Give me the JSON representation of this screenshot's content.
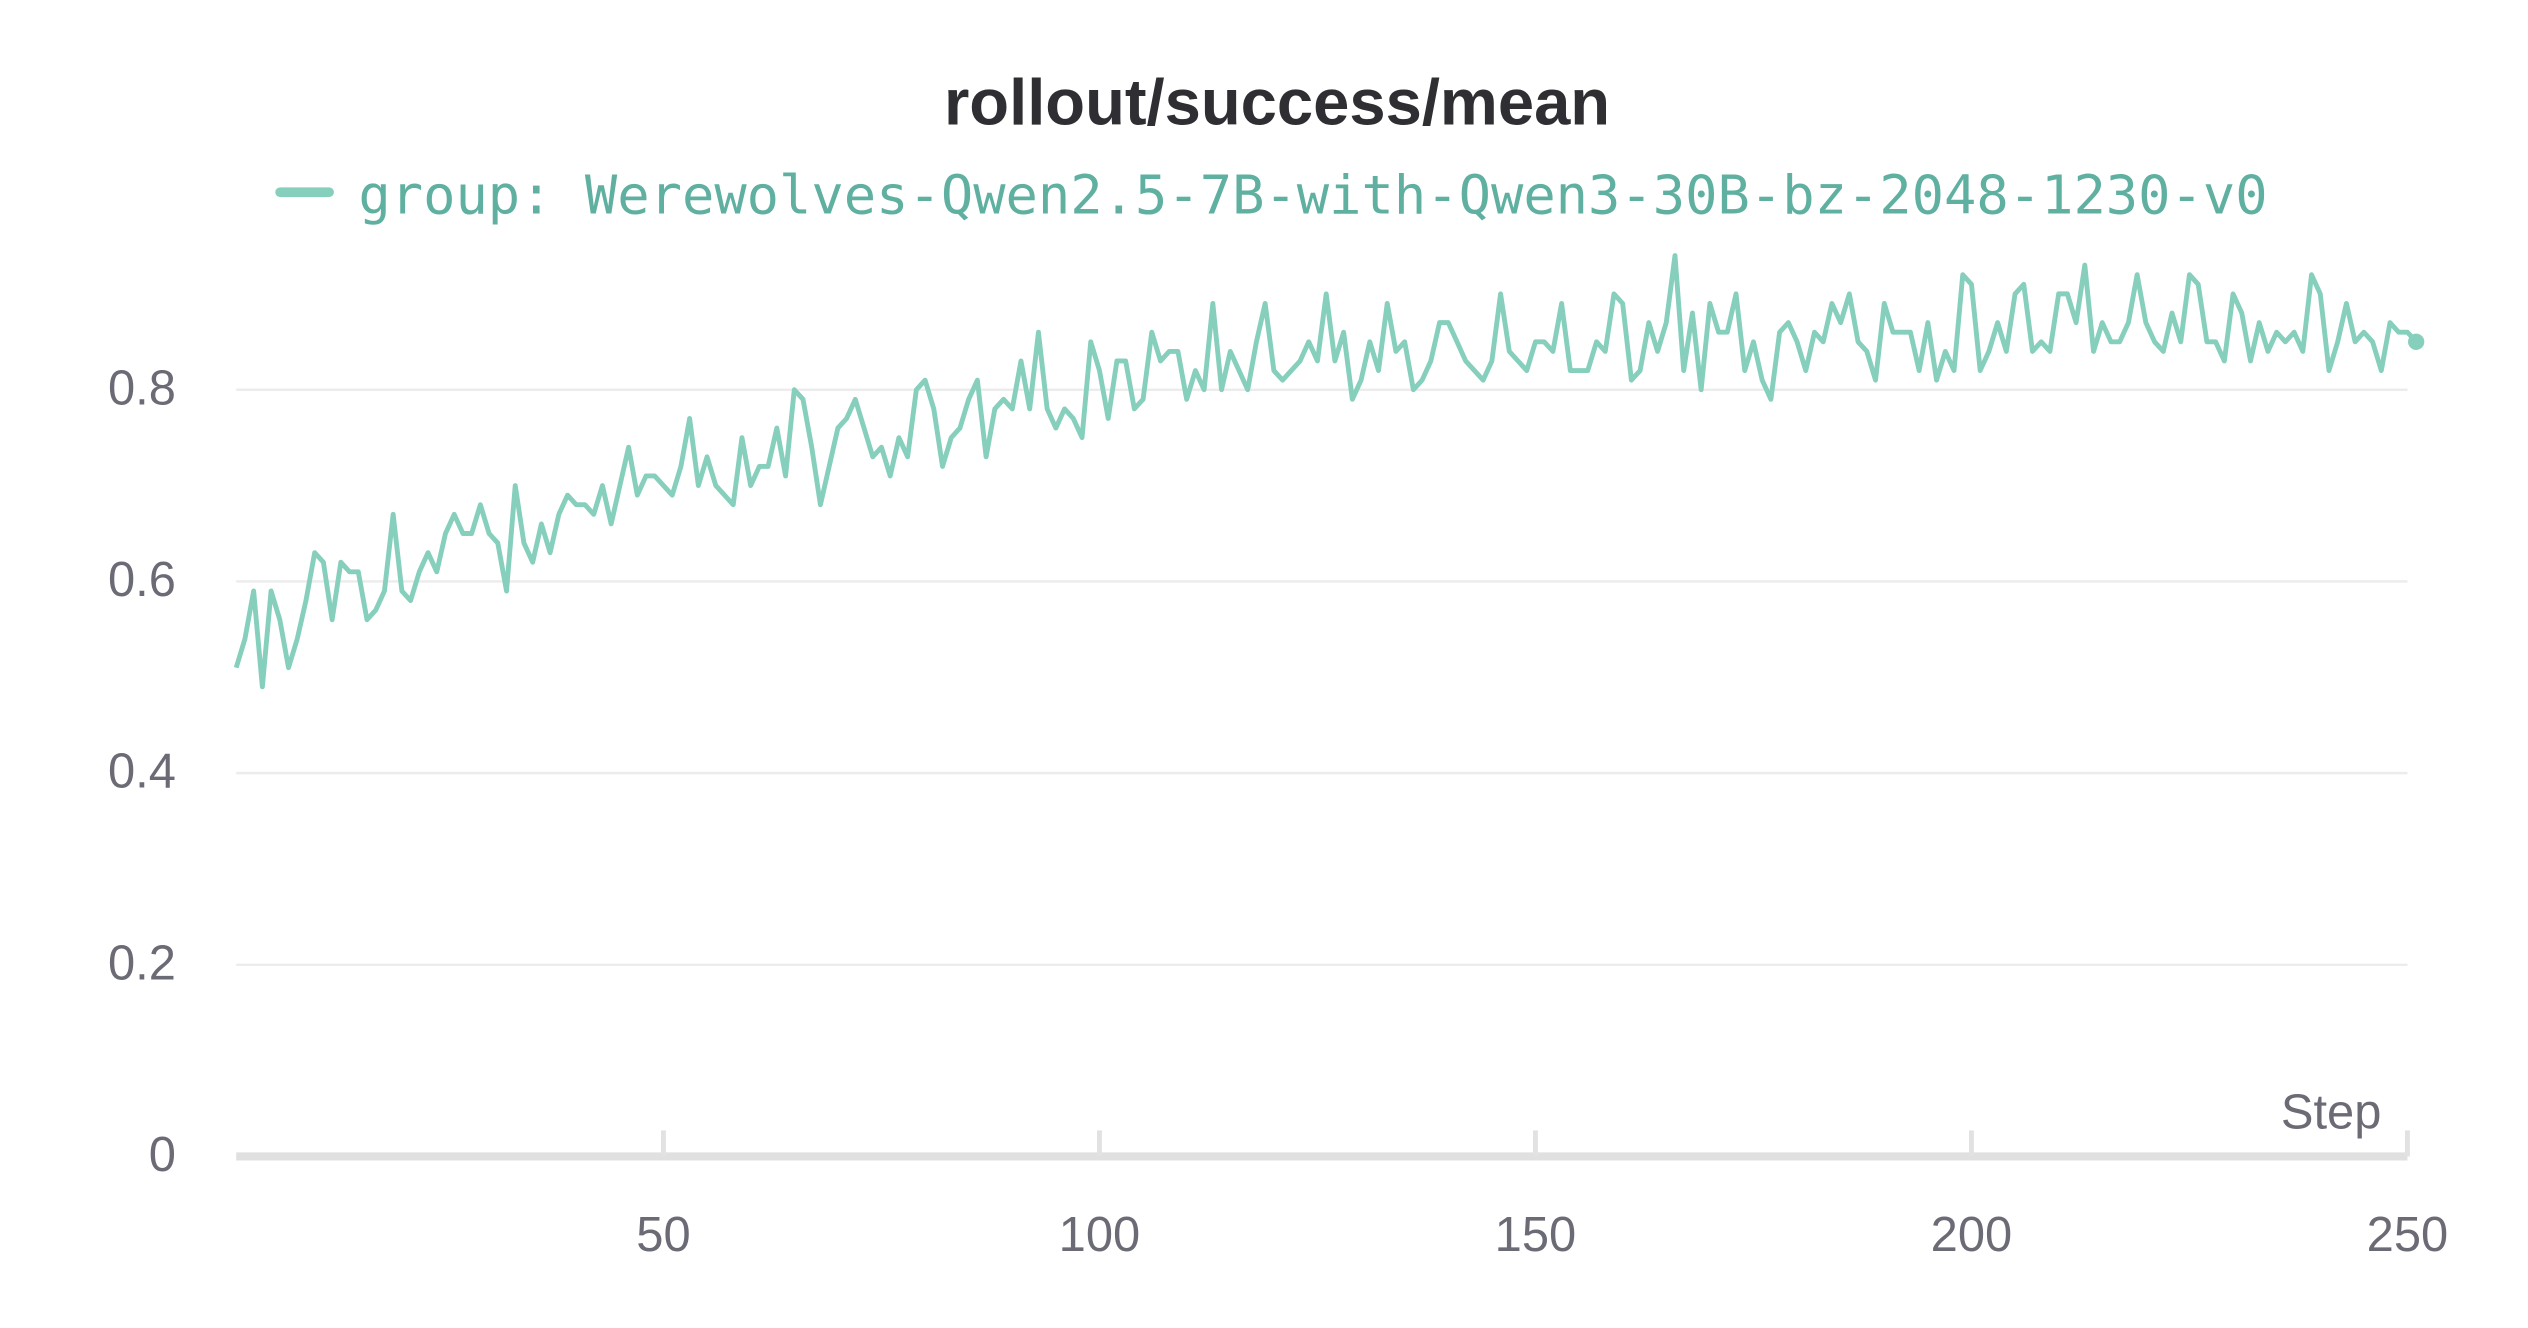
{
  "chart_data": {
    "type": "line",
    "title": "rollout/success/mean",
    "x_label": "Step",
    "x": [
      1,
      2,
      3,
      4,
      5,
      6,
      7,
      8,
      9,
      10,
      11,
      12,
      13,
      14,
      15,
      16,
      17,
      18,
      19,
      20,
      21,
      22,
      23,
      24,
      25,
      26,
      27,
      28,
      29,
      30,
      31,
      32,
      33,
      34,
      35,
      36,
      37,
      38,
      39,
      40,
      41,
      42,
      43,
      44,
      45,
      46,
      47,
      48,
      49,
      50,
      51,
      52,
      53,
      54,
      55,
      56,
      57,
      58,
      59,
      60,
      61,
      62,
      63,
      64,
      65,
      66,
      67,
      68,
      69,
      70,
      71,
      72,
      73,
      74,
      75,
      76,
      77,
      78,
      79,
      80,
      81,
      82,
      83,
      84,
      85,
      86,
      87,
      88,
      89,
      90,
      91,
      92,
      93,
      94,
      95,
      96,
      97,
      98,
      99,
      100,
      101,
      102,
      103,
      104,
      105,
      106,
      107,
      108,
      109,
      110,
      111,
      112,
      113,
      114,
      115,
      116,
      117,
      118,
      119,
      120,
      121,
      122,
      123,
      124,
      125,
      126,
      127,
      128,
      129,
      130,
      131,
      132,
      133,
      134,
      135,
      136,
      137,
      138,
      139,
      140,
      141,
      142,
      143,
      144,
      145,
      146,
      147,
      148,
      149,
      150,
      151,
      152,
      153,
      154,
      155,
      156,
      157,
      158,
      159,
      160,
      161,
      162,
      163,
      164,
      165,
      166,
      167,
      168,
      169,
      170,
      171,
      172,
      173,
      174,
      175,
      176,
      177,
      178,
      179,
      180,
      181,
      182,
      183,
      184,
      185,
      186,
      187,
      188,
      189,
      190,
      191,
      192,
      193,
      194,
      195,
      196,
      197,
      198,
      199,
      200,
      201,
      202,
      203,
      204,
      205,
      206,
      207,
      208,
      209,
      210,
      211,
      212,
      213,
      214,
      215,
      216,
      217,
      218,
      219,
      220,
      221,
      222,
      223,
      224,
      225,
      226,
      227,
      228,
      229,
      230,
      231,
      232,
      233,
      234,
      235,
      236,
      237,
      238,
      239,
      240,
      241,
      242,
      243,
      244,
      245,
      246,
      247,
      248,
      249,
      250,
      251
    ],
    "series": [
      {
        "name": "group: Werewolves-Qwen2.5-7B-with-Qwen3-30B-bz-2048-1230-v0",
        "color": "#86cfbc",
        "values": [
          0.51,
          0.54,
          0.59,
          0.49,
          0.59,
          0.56,
          0.51,
          0.54,
          0.58,
          0.63,
          0.62,
          0.56,
          0.62,
          0.61,
          0.61,
          0.56,
          0.57,
          0.59,
          0.67,
          0.59,
          0.58,
          0.61,
          0.63,
          0.61,
          0.65,
          0.67,
          0.65,
          0.65,
          0.68,
          0.65,
          0.64,
          0.59,
          0.7,
          0.64,
          0.62,
          0.66,
          0.63,
          0.67,
          0.69,
          0.68,
          0.68,
          0.67,
          0.7,
          0.66,
          0.7,
          0.74,
          0.69,
          0.71,
          0.71,
          0.7,
          0.69,
          0.72,
          0.77,
          0.7,
          0.73,
          0.7,
          0.69,
          0.68,
          0.75,
          0.7,
          0.72,
          0.72,
          0.76,
          0.71,
          0.8,
          0.79,
          0.74,
          0.68,
          0.72,
          0.76,
          0.77,
          0.79,
          0.76,
          0.73,
          0.74,
          0.71,
          0.75,
          0.73,
          0.8,
          0.81,
          0.78,
          0.72,
          0.75,
          0.76,
          0.79,
          0.81,
          0.73,
          0.78,
          0.79,
          0.78,
          0.83,
          0.78,
          0.86,
          0.78,
          0.76,
          0.78,
          0.77,
          0.75,
          0.85,
          0.82,
          0.77,
          0.83,
          0.83,
          0.78,
          0.79,
          0.86,
          0.83,
          0.84,
          0.84,
          0.79,
          0.82,
          0.8,
          0.89,
          0.8,
          0.84,
          0.82,
          0.8,
          0.85,
          0.89,
          0.82,
          0.81,
          0.82,
          0.83,
          0.85,
          0.83,
          0.9,
          0.83,
          0.86,
          0.79,
          0.81,
          0.85,
          0.82,
          0.89,
          0.84,
          0.85,
          0.8,
          0.81,
          0.83,
          0.87,
          0.87,
          0.85,
          0.83,
          0.82,
          0.81,
          0.83,
          0.9,
          0.84,
          0.83,
          0.82,
          0.85,
          0.85,
          0.84,
          0.89,
          0.82,
          0.82,
          0.82,
          0.85,
          0.84,
          0.9,
          0.89,
          0.81,
          0.82,
          0.87,
          0.84,
          0.87,
          0.94,
          0.82,
          0.88,
          0.8,
          0.89,
          0.86,
          0.86,
          0.9,
          0.82,
          0.85,
          0.81,
          0.79,
          0.86,
          0.87,
          0.85,
          0.82,
          0.86,
          0.85,
          0.89,
          0.87,
          0.9,
          0.85,
          0.84,
          0.81,
          0.89,
          0.86,
          0.86,
          0.86,
          0.82,
          0.87,
          0.81,
          0.84,
          0.82,
          0.92,
          0.91,
          0.82,
          0.84,
          0.87,
          0.84,
          0.9,
          0.91,
          0.84,
          0.85,
          0.84,
          0.9,
          0.9,
          0.87,
          0.93,
          0.84,
          0.87,
          0.85,
          0.85,
          0.87,
          0.92,
          0.87,
          0.85,
          0.84,
          0.88,
          0.85,
          0.92,
          0.91,
          0.85,
          0.85,
          0.83,
          0.9,
          0.88,
          0.83,
          0.87,
          0.84,
          0.86,
          0.85,
          0.86,
          0.84,
          0.92,
          0.9,
          0.82,
          0.85,
          0.89,
          0.85,
          0.86,
          0.85,
          0.82,
          0.87,
          0.86,
          0.86,
          0.85
        ]
      }
    ],
    "xlim": [
      1,
      250
    ],
    "xticks": [
      50,
      100,
      150,
      200,
      250
    ],
    "ylim": [
      0,
      0.95
    ],
    "yticks": [
      0,
      0.2,
      0.4,
      0.6,
      0.8
    ],
    "grid": true
  }
}
